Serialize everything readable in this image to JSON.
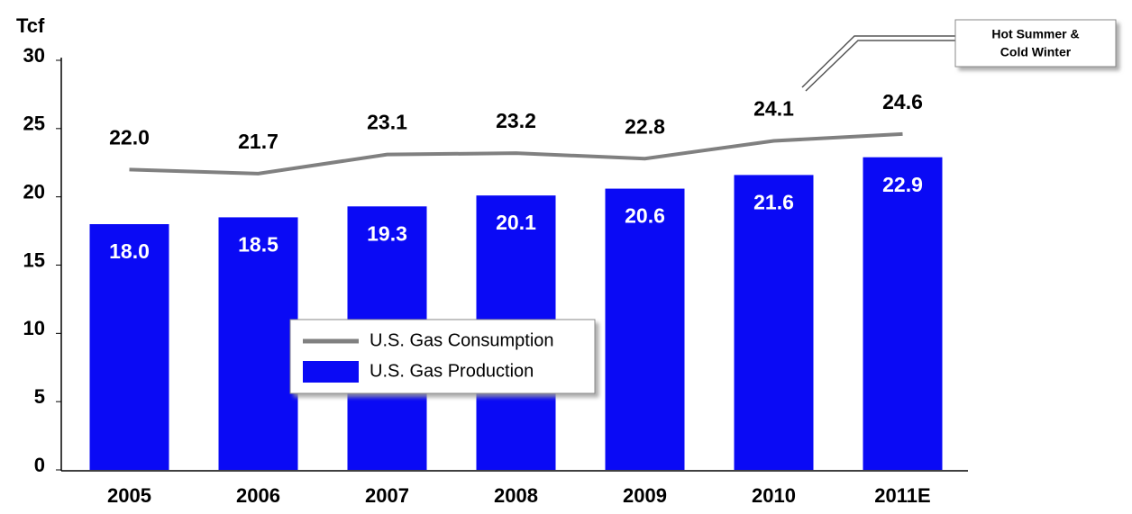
{
  "chart_data": {
    "type": "bar",
    "y_axis_label": "Tcf",
    "categories": [
      "2005",
      "2006",
      "2007",
      "2008",
      "2009",
      "2010",
      "2011E"
    ],
    "series": [
      {
        "name": "U.S. Gas Consumption",
        "type": "line",
        "color": "#808080",
        "values": [
          22.0,
          21.7,
          23.1,
          23.2,
          22.8,
          24.1,
          24.6
        ],
        "value_labels": [
          "22.0",
          "21.7",
          "23.1",
          "23.2",
          "22.8",
          "24.1",
          "24.6"
        ]
      },
      {
        "name": "U.S. Gas Production",
        "type": "bar",
        "color": "#0a0af5",
        "values": [
          18.0,
          18.5,
          19.3,
          20.1,
          20.6,
          21.6,
          22.9
        ],
        "value_labels": [
          "18.0",
          "18.5",
          "19.3",
          "20.1",
          "20.6",
          "21.6",
          "22.9"
        ]
      }
    ],
    "ylim": [
      0,
      30
    ],
    "yticks": [
      0,
      5,
      10,
      15,
      20,
      25,
      30
    ],
    "annotation": [
      "Hot Summer &",
      "Cold Winter"
    ]
  }
}
